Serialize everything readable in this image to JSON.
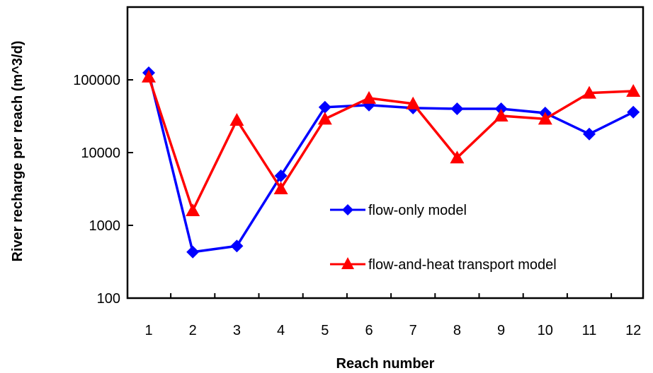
{
  "chart_data": {
    "type": "line",
    "xlabel": "Reach number",
    "ylabel": "River recharge per reach (m^3/d)",
    "yscale": "log",
    "ylim": [
      100,
      1000000
    ],
    "yticks": [
      "100",
      "1000",
      "10000",
      "100000"
    ],
    "categories": [
      "1",
      "2",
      "3",
      "4",
      "5",
      "6",
      "7",
      "8",
      "9",
      "10",
      "11",
      "12"
    ],
    "grid": false,
    "legend_position": "lower-right (inside plot)",
    "series": [
      {
        "name": "flow-only model",
        "color": "#0000ff",
        "marker": "diamond",
        "values": [
          125000,
          430,
          520,
          4800,
          42000,
          45000,
          41000,
          40000,
          40000,
          35000,
          18000,
          36000
        ]
      },
      {
        "name": "flow-and-heat transport model",
        "color": "#ff0000",
        "marker": "triangle",
        "values": [
          110000,
          1600,
          28000,
          3200,
          29000,
          56000,
          47000,
          8500,
          32000,
          29000,
          66000,
          70000
        ]
      }
    ]
  }
}
